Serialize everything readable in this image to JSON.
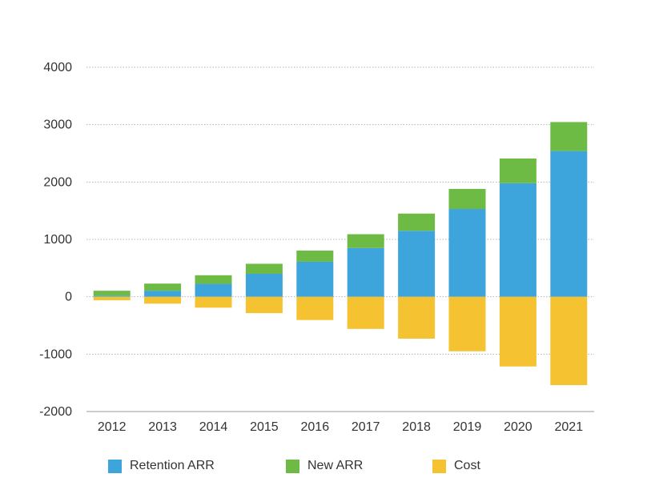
{
  "chart_data": {
    "type": "bar",
    "stacked": true,
    "categories": [
      "2012",
      "2013",
      "2014",
      "2015",
      "2016",
      "2017",
      "2018",
      "2019",
      "2020",
      "2021"
    ],
    "series": [
      {
        "name": "Retention ARR",
        "color": "#3ea5dc",
        "values": [
          20,
          105,
          225,
          400,
          610,
          850,
          1150,
          1530,
          1980,
          2540
        ]
      },
      {
        "name": "New ARR",
        "color": "#6dbb45",
        "values": [
          85,
          125,
          150,
          175,
          195,
          240,
          300,
          350,
          430,
          505
        ]
      },
      {
        "name": "Cost",
        "color": "#f5c231",
        "values": [
          -60,
          -120,
          -190,
          -285,
          -405,
          -560,
          -730,
          -950,
          -1215,
          -1540
        ]
      }
    ],
    "y_ticks": [
      "4000",
      "3000",
      "2000",
      "1000",
      "0",
      "-1000",
      "-2000"
    ],
    "ylim": [
      -2000,
      4000
    ],
    "grid": true,
    "legend_position": "bottom",
    "title": "",
    "xlabel": "",
    "ylabel": ""
  }
}
